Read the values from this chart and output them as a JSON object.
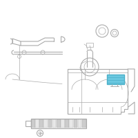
{
  "bg_color": "#ffffff",
  "line_color": "#aaaaaa",
  "dark_line": "#888888",
  "highlight_fill": "#6bc8e0",
  "highlight_edge": "#4aafc8",
  "fig_size": [
    2.0,
    2.0
  ],
  "dpi": 100
}
